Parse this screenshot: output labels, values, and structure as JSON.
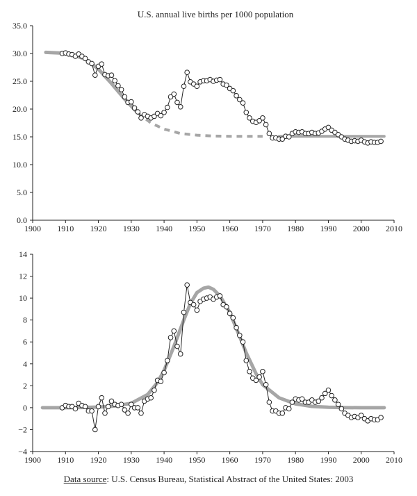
{
  "chart_data": [
    {
      "type": "line",
      "title": "U.S. annual live births per 1000 population",
      "xlabel": "",
      "ylabel": "",
      "xlim": [
        1900,
        2010
      ],
      "ylim": [
        0,
        35
      ],
      "x_ticks": [
        "1900",
        "1910",
        "1920",
        "1930",
        "1940",
        "1950",
        "1960",
        "1970",
        "1980",
        "1990",
        "2000",
        "2010"
      ],
      "y_ticks": [
        "0.0",
        "5.0",
        "10.0",
        "15.0",
        "20.0",
        "25.0",
        "30.0",
        "35.0"
      ],
      "grid": false,
      "series": [
        {
          "marker": "open-circle",
          "color": "#222222",
          "x": [
            1909,
            1910,
            1911,
            1912,
            1913,
            1914,
            1915,
            1916,
            1917,
            1918,
            1919,
            1920,
            1921,
            1922,
            1923,
            1924,
            1925,
            1926,
            1927,
            1928,
            1929,
            1930,
            1931,
            1932,
            1933,
            1934,
            1935,
            1936,
            1937,
            1938,
            1939,
            1940,
            1941,
            1942,
            1943,
            1944,
            1945,
            1946,
            1947,
            1948,
            1949,
            1950,
            1951,
            1952,
            1953,
            1954,
            1955,
            1956,
            1957,
            1958,
            1959,
            1960,
            1961,
            1962,
            1963,
            1964,
            1965,
            1966,
            1967,
            1968,
            1969,
            1970,
            1971,
            1972,
            1973,
            1974,
            1975,
            1976,
            1977,
            1978,
            1979,
            1980,
            1981,
            1982,
            1983,
            1984,
            1985,
            1986,
            1987,
            1988,
            1989,
            1990,
            1991,
            1992,
            1993,
            1994,
            1995,
            1996,
            1997,
            1998,
            1999,
            2000,
            2001,
            2002,
            2003,
            2004,
            2005,
            2006
          ],
          "y": [
            30.0,
            30.1,
            29.9,
            29.8,
            29.5,
            29.9,
            29.5,
            29.1,
            28.5,
            28.2,
            26.1,
            27.7,
            28.1,
            26.2,
            26.0,
            26.1,
            25.1,
            24.2,
            23.5,
            22.2,
            21.2,
            21.3,
            20.2,
            19.5,
            18.4,
            19.0,
            18.7,
            18.4,
            18.7,
            19.2,
            18.8,
            19.4,
            20.3,
            22.2,
            22.7,
            21.2,
            20.4,
            24.1,
            26.6,
            24.9,
            24.5,
            24.1,
            24.9,
            25.1,
            25.1,
            25.3,
            25.0,
            25.2,
            25.3,
            24.5,
            24.3,
            23.7,
            23.3,
            22.4,
            21.7,
            21.1,
            19.4,
            18.4,
            17.8,
            17.6,
            17.9,
            18.4,
            17.2,
            15.6,
            14.8,
            14.8,
            14.6,
            14.6,
            15.1,
            15.0,
            15.6,
            15.9,
            15.8,
            15.9,
            15.6,
            15.6,
            15.8,
            15.6,
            15.7,
            16.0,
            16.4,
            16.7,
            16.2,
            15.8,
            15.4,
            15.0,
            14.6,
            14.4,
            14.2,
            14.3,
            14.2,
            14.4,
            14.1,
            13.9,
            14.1,
            14.0,
            14.0,
            14.2
          ]
        },
        {
          "style": "thick-grey-line",
          "color": "#a6a6a6",
          "x": [
            1904,
            1908,
            1912,
            1916,
            1920,
            1924,
            1928,
            1932,
            1936,
            1940,
            1945,
            1950,
            1955,
            1960,
            1965,
            1970,
            1975,
            1980,
            1985,
            1990,
            1995,
            2000,
            2007
          ],
          "y": [
            30.2,
            30.1,
            29.8,
            29.0,
            27.2,
            24.6,
            21.8,
            19.3,
            17.5,
            16.4,
            15.6,
            15.3,
            15.15,
            15.1,
            15.1,
            15.1,
            15.1,
            15.1,
            15.1,
            15.1,
            15.1,
            15.1,
            15.1
          ]
        }
      ]
    },
    {
      "type": "line",
      "title": "",
      "xlabel": "",
      "ylabel": "",
      "xlim": [
        1900,
        2010
      ],
      "ylim": [
        -4,
        14
      ],
      "x_ticks": [
        "1900",
        "1910",
        "1920",
        "1930",
        "1940",
        "1950",
        "1960",
        "1970",
        "1980",
        "1990",
        "2000",
        "2010"
      ],
      "y_ticks": [
        "−4",
        "−2",
        "0",
        "2",
        "4",
        "6",
        "8",
        "10",
        "12",
        "14"
      ],
      "grid": false,
      "series": [
        {
          "marker": "open-circle",
          "color": "#222222",
          "x": [
            1909,
            1910,
            1911,
            1912,
            1913,
            1914,
            1915,
            1916,
            1917,
            1918,
            1919,
            1920,
            1921,
            1922,
            1923,
            1924,
            1925,
            1926,
            1927,
            1928,
            1929,
            1930,
            1931,
            1932,
            1933,
            1934,
            1935,
            1936,
            1937,
            1938,
            1939,
            1940,
            1941,
            1942,
            1943,
            1944,
            1945,
            1946,
            1947,
            1948,
            1949,
            1950,
            1951,
            1952,
            1953,
            1954,
            1955,
            1956,
            1957,
            1958,
            1959,
            1960,
            1961,
            1962,
            1963,
            1964,
            1965,
            1966,
            1967,
            1968,
            1969,
            1970,
            1971,
            1972,
            1973,
            1974,
            1975,
            1976,
            1977,
            1978,
            1979,
            1980,
            1981,
            1982,
            1983,
            1984,
            1985,
            1986,
            1987,
            1988,
            1989,
            1990,
            1991,
            1992,
            1993,
            1994,
            1995,
            1996,
            1997,
            1998,
            1999,
            2000,
            2001,
            2002,
            2003,
            2004,
            2005,
            2006
          ],
          "y": [
            0.0,
            0.2,
            0.1,
            0.1,
            -0.1,
            0.4,
            0.2,
            0.1,
            -0.3,
            -0.3,
            -2.0,
            0.1,
            0.9,
            -0.5,
            0.1,
            0.6,
            0.3,
            0.2,
            0.3,
            -0.2,
            -0.5,
            0.3,
            0.0,
            0.0,
            -0.5,
            0.6,
            0.8,
            0.9,
            1.6,
            2.5,
            2.4,
            3.2,
            4.3,
            6.4,
            7.0,
            5.6,
            4.9,
            8.7,
            11.2,
            9.6,
            9.4,
            8.9,
            9.7,
            9.9,
            10.0,
            10.1,
            9.9,
            10.1,
            10.2,
            9.4,
            9.2,
            8.6,
            8.2,
            7.3,
            6.6,
            6.0,
            4.3,
            3.3,
            2.7,
            2.5,
            2.8,
            3.3,
            2.1,
            0.5,
            -0.3,
            -0.3,
            -0.5,
            -0.5,
            0.0,
            -0.1,
            0.5,
            0.8,
            0.7,
            0.8,
            0.5,
            0.5,
            0.7,
            0.5,
            0.6,
            0.9,
            1.3,
            1.6,
            1.1,
            0.7,
            0.3,
            -0.1,
            -0.5,
            -0.7,
            -0.9,
            -0.8,
            -0.9,
            -0.7,
            -1.0,
            -1.2,
            -1.0,
            -1.1,
            -1.1,
            -0.9
          ]
        },
        {
          "style": "thick-grey-line",
          "color": "#a6a6a6",
          "x": [
            1903,
            1910,
            1915,
            1920,
            1925,
            1930,
            1935,
            1938,
            1940,
            1943,
            1946,
            1948,
            1950,
            1952,
            1953.5,
            1955,
            1957,
            1960,
            1963,
            1965,
            1968,
            1970,
            1975,
            1980,
            1985,
            1990,
            1995,
            2000,
            2007
          ],
          "y": [
            0.0,
            0.0,
            0.02,
            0.06,
            0.15,
            0.4,
            1.2,
            2.3,
            3.4,
            5.6,
            8.0,
            9.5,
            10.5,
            10.9,
            11.0,
            10.8,
            10.2,
            8.7,
            6.5,
            5.0,
            3.1,
            2.1,
            0.9,
            0.35,
            0.12,
            0.04,
            0.01,
            0.0,
            0.0
          ]
        }
      ]
    }
  ],
  "source": {
    "label": "Data source",
    "text": ": U.S. Census Bureau, Statistical Abstract of the United States: 2003"
  }
}
